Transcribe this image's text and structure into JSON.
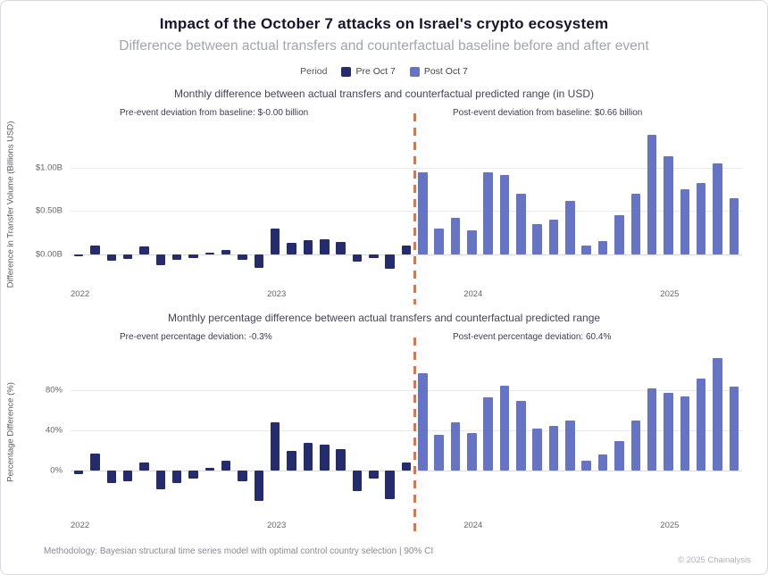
{
  "header": {
    "title": "Impact of the October 7 attacks on Israel's crypto ecosystem",
    "subtitle": "Difference between actual transfers and counterfactual baseline before and after event"
  },
  "legend": {
    "label": "Period",
    "items": [
      {
        "label": "Pre Oct 7",
        "color": "#242c6e"
      },
      {
        "label": "Post Oct 7",
        "color": "#6674c6"
      }
    ]
  },
  "colors": {
    "pre": "#242c6e",
    "post": "#6674c6",
    "event_line": "#f26d3d",
    "grid": "#e9e9ef"
  },
  "footer": {
    "methodology": "Methodology: Bayesian structural time series model with optimal control country selection | 90% CI",
    "copyright": "© 2025 Chainalysis"
  },
  "chart_data": [
    {
      "type": "bar",
      "title": "Monthly difference between actual transfers and counterfactual predicted range (in USD)",
      "xlabel": "",
      "ylabel": "Difference in Transfer Volume (Billions USD)",
      "annotations": {
        "pre": "Pre-event deviation from baseline: $-0.00 billion",
        "post": "Post-event deviation from baseline: $0.66 billion"
      },
      "ylim": [
        -0.35,
        1.5
      ],
      "grid": true,
      "yticks": [
        {
          "value": 0,
          "label": "$0.00B"
        },
        {
          "value": 0.5,
          "label": "$0.50B"
        },
        {
          "value": 1.0,
          "label": "$1.00B"
        }
      ],
      "x_ticks": [
        {
          "index": 0,
          "label": "2022"
        },
        {
          "index": 12,
          "label": "2023"
        },
        {
          "index": 24,
          "label": "2024"
        },
        {
          "index": 36,
          "label": "2025"
        }
      ],
      "categories": [
        "2022-01",
        "2022-02",
        "2022-03",
        "2022-04",
        "2022-05",
        "2022-06",
        "2022-07",
        "2022-08",
        "2022-09",
        "2022-10",
        "2022-11",
        "2022-12",
        "2023-01",
        "2023-02",
        "2023-03",
        "2023-04",
        "2023-05",
        "2023-06",
        "2023-07",
        "2023-08",
        "2023-09",
        "2023-10",
        "2023-11",
        "2023-12",
        "2024-01",
        "2024-02",
        "2024-03",
        "2024-04",
        "2024-05",
        "2024-06",
        "2024-07",
        "2024-08",
        "2024-09",
        "2024-10",
        "2024-11",
        "2024-12",
        "2025-01",
        "2025-02",
        "2025-03",
        "2025-04",
        "2025-05"
      ],
      "series": [
        {
          "name": "Pre Oct 7",
          "values": [
            -0.02,
            0.1,
            -0.07,
            -0.05,
            0.09,
            -0.13,
            -0.06,
            -0.04,
            0.02,
            0.05,
            -0.06,
            -0.16,
            0.3,
            0.13,
            0.16,
            0.17,
            0.14,
            -0.08,
            -0.04,
            -0.17,
            0.1
          ]
        },
        {
          "name": "Post Oct 7",
          "values": [
            0.95,
            0.3,
            0.42,
            0.28,
            0.95,
            0.91,
            0.7,
            0.35,
            0.4,
            0.62,
            0.1,
            0.15,
            0.45,
            0.7,
            1.38,
            1.13,
            0.75,
            0.82,
            1.05,
            0.65
          ]
        }
      ]
    },
    {
      "type": "bar",
      "title": "Monthly percentage difference between actual transfers and counterfactual predicted range",
      "xlabel": "",
      "ylabel": "Percentage Difference (%)",
      "annotations": {
        "pre": "Pre-event percentage deviation: -0.3%",
        "post": "Post-event percentage deviation: 60.4%"
      },
      "ylim": [
        -45,
        122
      ],
      "grid": true,
      "yticks": [
        {
          "value": 0,
          "label": "0%"
        },
        {
          "value": 40,
          "label": "40%"
        },
        {
          "value": 80,
          "label": "80%"
        }
      ],
      "x_ticks": [
        {
          "index": 0,
          "label": "2022"
        },
        {
          "index": 12,
          "label": "2023"
        },
        {
          "index": 24,
          "label": "2024"
        },
        {
          "index": 36,
          "label": "2025"
        }
      ],
      "categories": [
        "2022-01",
        "2022-02",
        "2022-03",
        "2022-04",
        "2022-05",
        "2022-06",
        "2022-07",
        "2022-08",
        "2022-09",
        "2022-10",
        "2022-11",
        "2022-12",
        "2023-01",
        "2023-02",
        "2023-03",
        "2023-04",
        "2023-05",
        "2023-06",
        "2023-07",
        "2023-08",
        "2023-09",
        "2023-10",
        "2023-11",
        "2023-12",
        "2024-01",
        "2024-02",
        "2024-03",
        "2024-04",
        "2024-05",
        "2024-06",
        "2024-07",
        "2024-08",
        "2024-09",
        "2024-10",
        "2024-11",
        "2024-12",
        "2025-01",
        "2025-02",
        "2025-03",
        "2025-04",
        "2025-05"
      ],
      "series": [
        {
          "name": "Pre Oct 7",
          "values": [
            -3,
            17,
            -12,
            -10,
            8,
            -18,
            -12,
            -8,
            3,
            10,
            -10,
            -30,
            48,
            20,
            28,
            26,
            22,
            -20,
            -8,
            -28,
            8
          ]
        },
        {
          "name": "Post Oct 7",
          "values": [
            97,
            36,
            48,
            38,
            73,
            85,
            70,
            42,
            45,
            50,
            10,
            16,
            30,
            50,
            82,
            78,
            74,
            92,
            112,
            84
          ]
        }
      ]
    }
  ]
}
